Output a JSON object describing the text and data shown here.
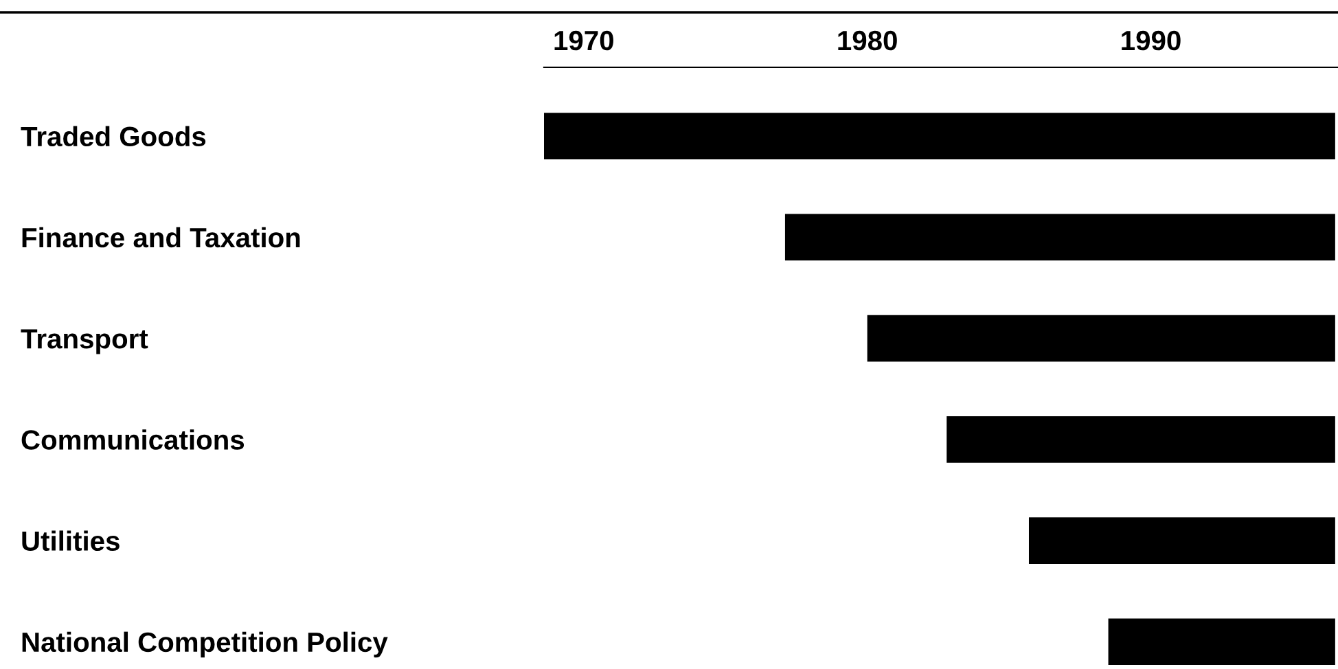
{
  "chart_data": {
    "type": "bar",
    "orientation": "horizontal",
    "categories": [
      "Traded Goods",
      "Finance and Taxation",
      "Transport",
      "Communications",
      "Utilities",
      "National Competition Policy"
    ],
    "base": [
      1968.6,
      1977.1,
      1980.0,
      1982.8,
      1985.7,
      1988.5
    ],
    "values": [
      27.9,
      19.4,
      16.5,
      13.7,
      10.8,
      8.0
    ],
    "color": "#000000",
    "xlim": [
      1968.6,
      1996.6
    ],
    "xticks": [
      1970,
      1980,
      1990
    ],
    "grid": false,
    "legend": false
  }
}
